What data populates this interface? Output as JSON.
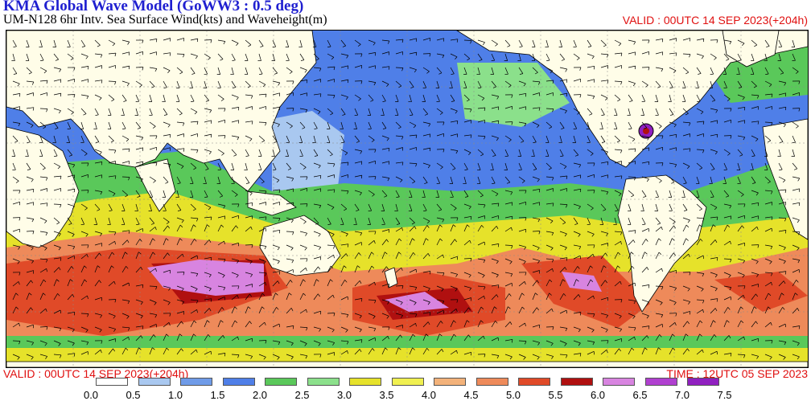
{
  "header": {
    "title": "KMA  Global Wave Model (GoWW3 : 0.5 deg)",
    "subtitle": "UM-N128  6hr Intv. Sea Surface Wind(kts) and Waveheight(m)",
    "valid_top": "VALID : 00UTC 14 SEP 2023(+204h)"
  },
  "footer": {
    "valid": "VALID : 00UTC 14 SEP 2023(+204h)",
    "time": "TIME : 12UTC 05 SEP 2023"
  },
  "colorbar": {
    "labels": [
      "0.0",
      "0.5",
      "1.0",
      "1.5",
      "2.0",
      "2.5",
      "3.0",
      "3.5",
      "4.0",
      "4.5",
      "5.0",
      "5.5",
      "6.0",
      "6.5",
      "7.0",
      "7.5"
    ],
    "colors": [
      "#ffffff",
      "#a9c8f0",
      "#6f9be8",
      "#4f7fe8",
      "#5ac85a",
      "#8be08b",
      "#e6e22a",
      "#f0f050",
      "#f3b27a",
      "#ee8a5a",
      "#e04a28",
      "#b01010",
      "#d884e0",
      "#b040d0",
      "#9020c0"
    ]
  },
  "map": {
    "land_color": "#fffde8",
    "coast_color": "#000000"
  }
}
